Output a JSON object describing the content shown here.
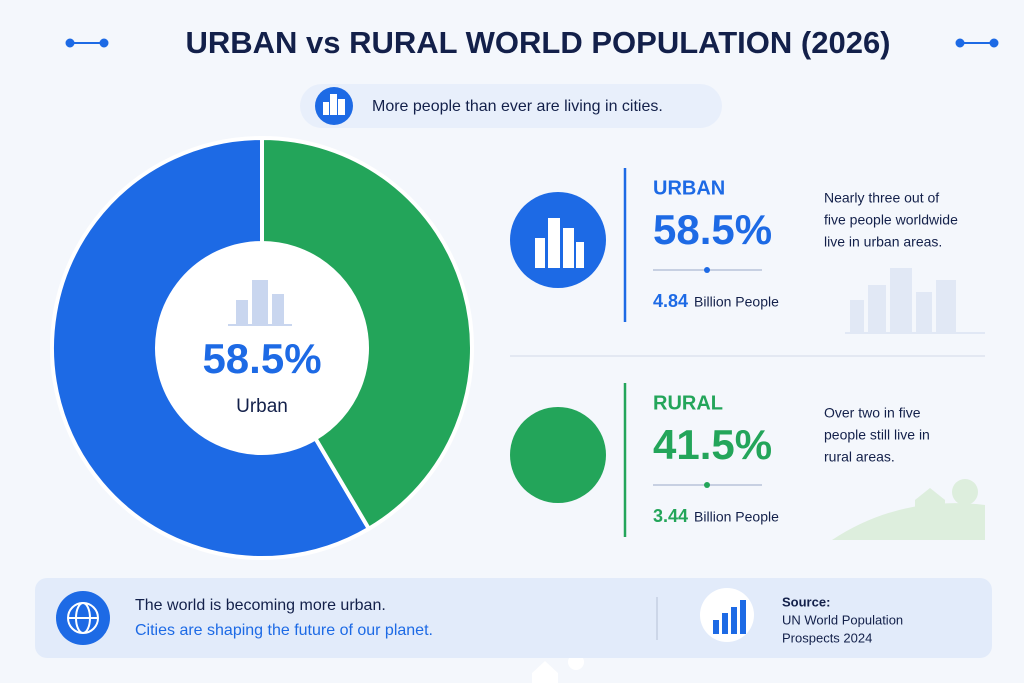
{
  "chart_data": {
    "type": "donut",
    "title": "URBAN vs RURAL WORLD POPULATION (2026)",
    "subtitle": "More people than ever are living in cities.",
    "categories": [
      "Urban",
      "Rural"
    ],
    "values": [
      58.5,
      41.5
    ],
    "value_labels": [
      "58.5%",
      "41.5%"
    ],
    "colors": [
      "#1d6ae5",
      "#23a55a"
    ],
    "panels": [
      {
        "heading": "URBAN",
        "population": 4.84,
        "population_unit": "Billion People",
        "description": [
          "Nearly three out of",
          "five people worldwide",
          "live in urban areas."
        ]
      },
      {
        "heading": "RURAL",
        "population": 3.44,
        "population_unit": "Billion People",
        "description": [
          "Over two in five",
          "people still live in",
          "rural areas."
        ]
      }
    ],
    "footer": {
      "line1": "The world is becoming more urban.",
      "line2": "Cities are shaping the future of our planet.",
      "source_label": "Source:",
      "source": [
        "UN World Population",
        "Prospects 2024"
      ]
    }
  }
}
